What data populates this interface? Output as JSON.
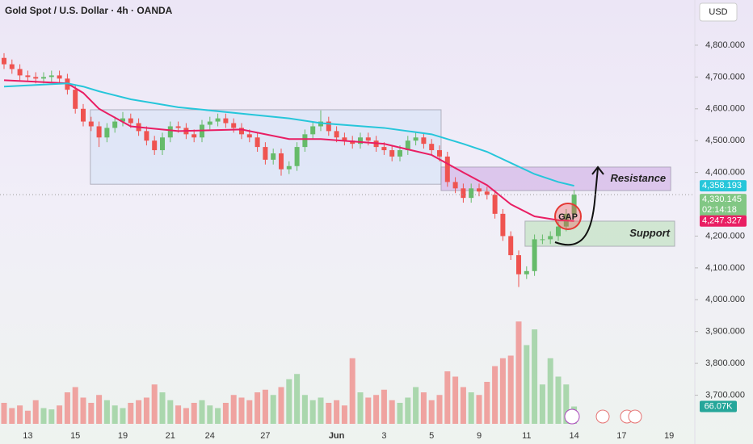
{
  "header": {
    "title": "Gold Spot / U.S. Dollar · 4h · OANDA",
    "currency_button": "USD"
  },
  "chart_data": {
    "type": "candlestick",
    "categories": [
      null,
      null,
      null,
      "13",
      null,
      null,
      null,
      null,
      null,
      "15",
      null,
      null,
      null,
      null,
      null,
      "19",
      null,
      null,
      null,
      null,
      null,
      "21",
      null,
      null,
      null,
      null,
      "24",
      null,
      null,
      null,
      null,
      null,
      null,
      "27",
      null,
      null,
      null,
      null,
      null,
      null,
      null,
      null,
      "Jun",
      null,
      null,
      null,
      null,
      null,
      "3",
      null,
      null,
      null,
      null,
      null,
      "5",
      null,
      null,
      null,
      null,
      null,
      "9",
      null,
      null,
      null,
      null,
      null,
      "11",
      null,
      null,
      null,
      null,
      null,
      "14",
      null,
      null,
      null,
      null,
      null,
      "17",
      null,
      null,
      null,
      null,
      null,
      "19"
    ],
    "open": [
      4760,
      4740,
      4725,
      4705,
      4700,
      4695,
      4700,
      4705,
      4695,
      4660,
      4600,
      4560,
      4545,
      4510,
      4540,
      4560,
      4570,
      4555,
      4530,
      4500,
      4470,
      4510,
      4545,
      4540,
      4520,
      4510,
      4550,
      4560,
      4570,
      4555,
      4540,
      4520,
      4510,
      4480,
      4440,
      4460,
      4410,
      4420,
      4480,
      4520,
      4545,
      4560,
      4530,
      4510,
      4500,
      4490,
      4510,
      4500,
      4480,
      4470,
      4450,
      4470,
      4500,
      4510,
      4490,
      4470,
      4450,
      4370,
      4350,
      4320,
      4350,
      4340,
      4330,
      4270,
      4200,
      4140,
      4080,
      4090,
      4190,
      4190,
      4200,
      4230,
      4270,
      null,
      null,
      null,
      null,
      null,
      null,
      null,
      null,
      null,
      null,
      null,
      null
    ],
    "high": [
      4775,
      4755,
      4740,
      4720,
      4715,
      4715,
      4720,
      4720,
      4710,
      4675,
      4615,
      4575,
      4560,
      4555,
      4575,
      4590,
      4585,
      4570,
      4545,
      4515,
      4525,
      4560,
      4560,
      4555,
      4535,
      4565,
      4575,
      4585,
      4585,
      4570,
      4555,
      4535,
      4525,
      4495,
      4475,
      4475,
      4435,
      4495,
      4535,
      4560,
      4595,
      4575,
      4545,
      4525,
      4515,
      4525,
      4525,
      4515,
      4495,
      4485,
      4485,
      4515,
      4525,
      4525,
      4505,
      4485,
      4465,
      4385,
      4365,
      4365,
      4365,
      4355,
      4345,
      4285,
      4215,
      4155,
      4105,
      4205,
      4205,
      4215,
      4245,
      4285,
      4345,
      null,
      null,
      null,
      null,
      null,
      null,
      null,
      null,
      null,
      null,
      null,
      null
    ],
    "low": [
      4725,
      4710,
      4690,
      4685,
      4680,
      4680,
      4685,
      4680,
      4645,
      4585,
      4545,
      4530,
      4480,
      4495,
      4525,
      4545,
      4540,
      4515,
      4485,
      4455,
      4455,
      4495,
      4525,
      4505,
      4495,
      4495,
      4535,
      4545,
      4540,
      4525,
      4505,
      4495,
      4465,
      4425,
      4425,
      4390,
      4395,
      4405,
      4465,
      4505,
      4530,
      4515,
      4495,
      4485,
      4475,
      4475,
      4485,
      4465,
      4455,
      4435,
      4435,
      4455,
      4485,
      4475,
      4455,
      4435,
      4355,
      4335,
      4305,
      4305,
      4325,
      4315,
      4255,
      4185,
      4125,
      4040,
      4065,
      4075,
      4175,
      4175,
      4185,
      4215,
      4255,
      null,
      null,
      null,
      null,
      null,
      null,
      null,
      null,
      null,
      null,
      null,
      null
    ],
    "close": [
      4740,
      4725,
      4705,
      4700,
      4695,
      4700,
      4705,
      4695,
      4660,
      4600,
      4560,
      4545,
      4510,
      4540,
      4560,
      4570,
      4555,
      4530,
      4500,
      4470,
      4510,
      4545,
      4540,
      4520,
      4510,
      4550,
      4560,
      4570,
      4555,
      4540,
      4520,
      4510,
      4480,
      4440,
      4460,
      4410,
      4420,
      4480,
      4520,
      4545,
      4560,
      4530,
      4510,
      4500,
      4490,
      4510,
      4500,
      4480,
      4470,
      4450,
      4470,
      4500,
      4510,
      4490,
      4470,
      4450,
      4370,
      4350,
      4320,
      4350,
      4340,
      4330,
      4270,
      4200,
      4140,
      4080,
      4090,
      4190,
      4190,
      4200,
      4230,
      4270,
      4330.145,
      null,
      null,
      null,
      null,
      null,
      null,
      null,
      null,
      null,
      null,
      null,
      null
    ],
    "up_color": "#66bb6a",
    "down_color": "#ef5350",
    "volume": [
      80,
      60,
      70,
      50,
      90,
      60,
      55,
      70,
      120,
      140,
      100,
      80,
      110,
      90,
      70,
      60,
      80,
      90,
      100,
      150,
      120,
      90,
      70,
      60,
      80,
      90,
      70,
      60,
      80,
      110,
      100,
      90,
      120,
      130,
      110,
      140,
      170,
      190,
      110,
      90,
      100,
      80,
      90,
      70,
      250,
      120,
      100,
      110,
      130,
      90,
      80,
      100,
      140,
      120,
      90,
      110,
      200,
      180,
      140,
      120,
      110,
      160,
      220,
      250,
      260,
      390,
      300,
      360,
      150,
      250,
      180,
      150,
      66.07,
      null,
      null,
      null,
      null,
      null,
      null,
      null,
      null,
      null,
      null,
      null,
      null
    ],
    "volume_label": {
      "value": 66.07,
      "label": "66.07K",
      "color": "#26a69a"
    },
    "volume_lim": [
      0,
      400
    ],
    "series": [
      {
        "type": "line",
        "color": "#e91e63",
        "x": [
          0,
          4,
          8,
          10,
          12,
          16,
          22,
          30,
          36,
          40,
          48,
          54,
          58,
          61,
          64,
          67,
          70,
          72
        ],
        "values": [
          4690,
          4685,
          4680,
          4650,
          4600,
          4545,
          4530,
          4535,
          4505,
          4505,
          4490,
          4455,
          4400,
          4360,
          4300,
          4262,
          4250,
          4247.327
        ]
      },
      {
        "type": "line",
        "color": "#26c6da",
        "x": [
          0,
          4,
          8,
          10,
          12,
          16,
          22,
          30,
          36,
          40,
          48,
          54,
          58,
          61,
          64,
          67,
          70,
          72
        ],
        "values": [
          4670,
          4675,
          4680,
          4670,
          4655,
          4630,
          4605,
          4585,
          4570,
          4555,
          4540,
          4520,
          4490,
          4465,
          4430,
          4395,
          4370,
          4358.193
        ]
      }
    ],
    "price_labels": [
      {
        "value": 4358.193,
        "label": "4,358.193",
        "color": "#26c6da"
      },
      {
        "value": 4330.145,
        "label": "4,330.145",
        "color": "#81c784"
      },
      {
        "value": 4247.327,
        "label": "4,247.327",
        "color": "#e91e63"
      }
    ],
    "countdown": "02:14:18",
    "zones": [
      {
        "label": null,
        "x": [
          10.9,
          55.2
        ],
        "from": 4597,
        "to": 4363,
        "color": "#dbe4f7"
      },
      {
        "label": "Resistance",
        "x": [
          55.2,
          84.2
        ],
        "from": 4417,
        "to": 4343,
        "color": "#d5b8e8"
      },
      {
        "label": "Support",
        "x": [
          65.8,
          84.7
        ],
        "from": 4247,
        "to": 4168,
        "color": "#c5e3c5"
      }
    ],
    "gap_label": "GAP",
    "ylim": [
      3610,
      4942
    ],
    "yticks": [
      {
        "value": 4800,
        "label": "4,800.000"
      },
      {
        "value": 4700,
        "label": "4,700.000"
      },
      {
        "value": 4600,
        "label": "4,600.000"
      },
      {
        "value": 4500,
        "label": "4,500.000"
      },
      {
        "value": 4400,
        "label": "4,400.000"
      },
      {
        "value": 4200,
        "label": "4,200.000"
      },
      {
        "value": 4100,
        "label": "4,100.000"
      },
      {
        "value": 4000,
        "label": "4,000.000"
      },
      {
        "value": 3900,
        "label": "3,900.000"
      },
      {
        "value": 3800,
        "label": "3,800.000"
      },
      {
        "value": 3700,
        "label": "3,700.000"
      }
    ]
  }
}
